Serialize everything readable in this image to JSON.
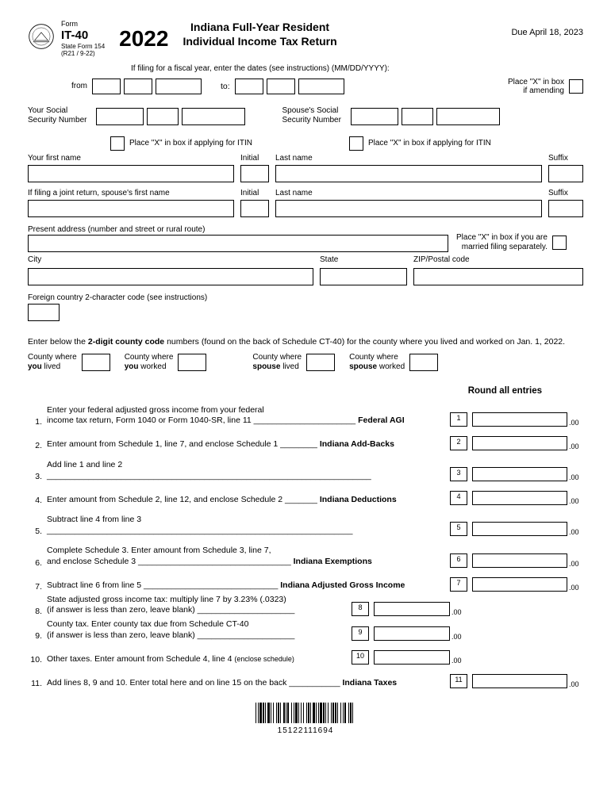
{
  "form": {
    "label": "Form",
    "id": "IT-40",
    "state_form": "State Form 154",
    "revision": "(R21 / 9-22)"
  },
  "year": "2022",
  "title_line1": "Indiana Full-Year Resident",
  "title_line2": "Individual Income Tax Return",
  "due": "Due April 18, 2023",
  "fiscal_note": "If filing for a fiscal year, enter the dates (see instructions) (MM/DD/YYYY):",
  "from_label": "from",
  "to_label": "to:",
  "amend_line1": "Place \"X\" in box",
  "amend_line2": "if amending",
  "ssn": {
    "your": "Your Social",
    "your2": "Security Number",
    "spouse": "Spouse's Social",
    "spouse2": "Security Number"
  },
  "itin_label": "Place \"X\" in box if applying for ITIN",
  "name": {
    "first": "Your first name",
    "initial": "Initial",
    "last": "Last name",
    "suffix": "Suffix",
    "spouse_first": "If filing a joint return, spouse's first name"
  },
  "address_label": "Present address (number and street or rural route)",
  "mfs_line1": "Place \"X\" in box if you are",
  "mfs_line2": "married filing separately.",
  "city_label": "City",
  "state_label": "State",
  "zip_label": "ZIP/Postal code",
  "fc_label": "Foreign country 2-character code (see instructions)",
  "county_intro1": "Enter below the ",
  "county_intro_bold": "2-digit county code",
  "county_intro2": " numbers (found on the back of Schedule CT-40) for the county where you lived and worked on Jan. 1, 2022.",
  "county": {
    "c1a": "County where",
    "c1b": "you",
    "c1c": " lived",
    "c2a": "County where",
    "c2b": "you",
    "c2c": " worked",
    "c3a": "County where",
    "c3b": "spouse",
    "c3c": " lived",
    "c4a": "County where",
    "c4b": "spouse",
    "c4c": " worked"
  },
  "round_header": "Round all entries",
  "lines": {
    "l1a": "Enter your federal adjusted gross income from your federal",
    "l1b": "income tax return, Form 1040 or Form 1040-SR, line 11 ______________________",
    "l1_label": "Federal AGI",
    "l2": "Enter amount from Schedule 1, line 7, and enclose Schedule 1 ________",
    "l2_label": "Indiana Add-Backs",
    "l3": "Add line 1 and line 2 ______________________________________________________________________",
    "l4": "Enter amount from Schedule 2, line 12, and enclose Schedule 2 _______",
    "l4_label": "Indiana Deductions",
    "l5": "Subtract line 4 from line 3 __________________________________________________________________",
    "l6a": "Complete Schedule 3. Enter amount from Schedule 3, line 7,",
    "l6b": "and enclose Schedule 3  _________________________________",
    "l6_label": "Indiana Exemptions",
    "l7": "Subtract line 6 from line 5 _____________________________",
    "l7_label": "Indiana Adjusted Gross Income",
    "l8a": "State adjusted gross income tax: multiply line 7 by 3.23% (.0323)",
    "l8b": "(if answer is less than zero, leave blank) _____________________",
    "l9a": "County tax. Enter county tax due from Schedule CT-40",
    "l9b": "(if answer is less than zero, leave blank) _____________________",
    "l10": "Other taxes. Enter amount from Schedule 4, line 4 ",
    "l10_paren": "(enclose schedule)",
    "l11": "Add lines 8, 9 and 10. Enter total here and on line 15 on the back ___________",
    "l11_label": "Indiana Taxes"
  },
  "nums": {
    "n1": "1.",
    "n2": "2.",
    "n3": "3.",
    "n4": "4.",
    "n5": "5.",
    "n6": "6.",
    "n7": "7.",
    "n8": "8.",
    "n9": "9.",
    "n10": "10.",
    "n11": "11."
  },
  "box_nums": {
    "b1": "1",
    "b2": "2",
    "b3": "3",
    "b4": "4",
    "b5": "5",
    "b6": "6",
    "b7": "7",
    "b8": "8",
    "b9": "9",
    "b10": "10",
    "b11": "11"
  },
  "cents": ".00",
  "barcode_number": "15122111694",
  "colors": {
    "text": "#000000",
    "bg": "#ffffff"
  }
}
